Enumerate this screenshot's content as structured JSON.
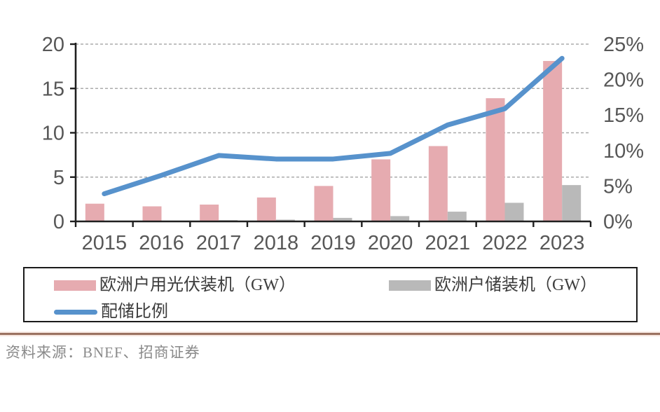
{
  "chart_data": {
    "type": "bar+line combo",
    "categories": [
      "2015",
      "2016",
      "2017",
      "2018",
      "2019",
      "2020",
      "2021",
      "2022",
      "2023"
    ],
    "series": [
      {
        "name": "欧洲户用光伏装机（GW）",
        "type": "bar",
        "axis": "left",
        "color": "#e6abb0",
        "values": [
          2.0,
          1.7,
          1.9,
          2.7,
          4.0,
          7.0,
          8.5,
          13.9,
          18.1
        ]
      },
      {
        "name": "欧洲户储装机（GW）",
        "type": "bar",
        "axis": "left",
        "color": "#b9b9b9",
        "values": [
          0.05,
          0.08,
          0.15,
          0.2,
          0.4,
          0.6,
          1.1,
          2.1,
          4.1
        ]
      },
      {
        "name": "配储比例",
        "type": "line",
        "axis": "right",
        "unit": "%",
        "color": "#5792cc",
        "values": [
          3.9,
          6.5,
          9.3,
          8.8,
          8.8,
          9.6,
          13.6,
          15.9,
          23.0
        ]
      }
    ],
    "left_axis": {
      "tick_labels": [
        "0",
        "5",
        "10",
        "15",
        "20"
      ],
      "tick_values": [
        0,
        5,
        10,
        15,
        20
      ],
      "range": [
        0,
        20
      ]
    },
    "right_axis": {
      "tick_labels": [
        "0%",
        "5%",
        "10%",
        "15%",
        "20%",
        "25%"
      ],
      "tick_values": [
        0,
        5,
        10,
        15,
        20,
        25
      ],
      "range": [
        0,
        25
      ]
    },
    "grid": "horizontal dashed",
    "legend_position": "bottom boxed"
  },
  "legend": {
    "items": [
      {
        "label": "欧洲户用光伏装机（GW）",
        "swatch": "bar",
        "color": "#e6abb0"
      },
      {
        "label": "欧洲户储装机（GW）",
        "swatch": "bar",
        "color": "#b9b9b9"
      },
      {
        "label": "配储比例",
        "swatch": "line",
        "color": "#5792cc"
      }
    ]
  },
  "source": {
    "text": "资料来源：BNEF、招商证券"
  },
  "colors": {
    "bar_pv": "#e6abb0",
    "bar_storage": "#b9b9b9",
    "line_ratio": "#5792cc",
    "axis": "#1f1f1f",
    "gridline": "#ababab",
    "axis_text": "#575757",
    "separator": "#9b7261",
    "source_text": "#8a8a8a"
  }
}
